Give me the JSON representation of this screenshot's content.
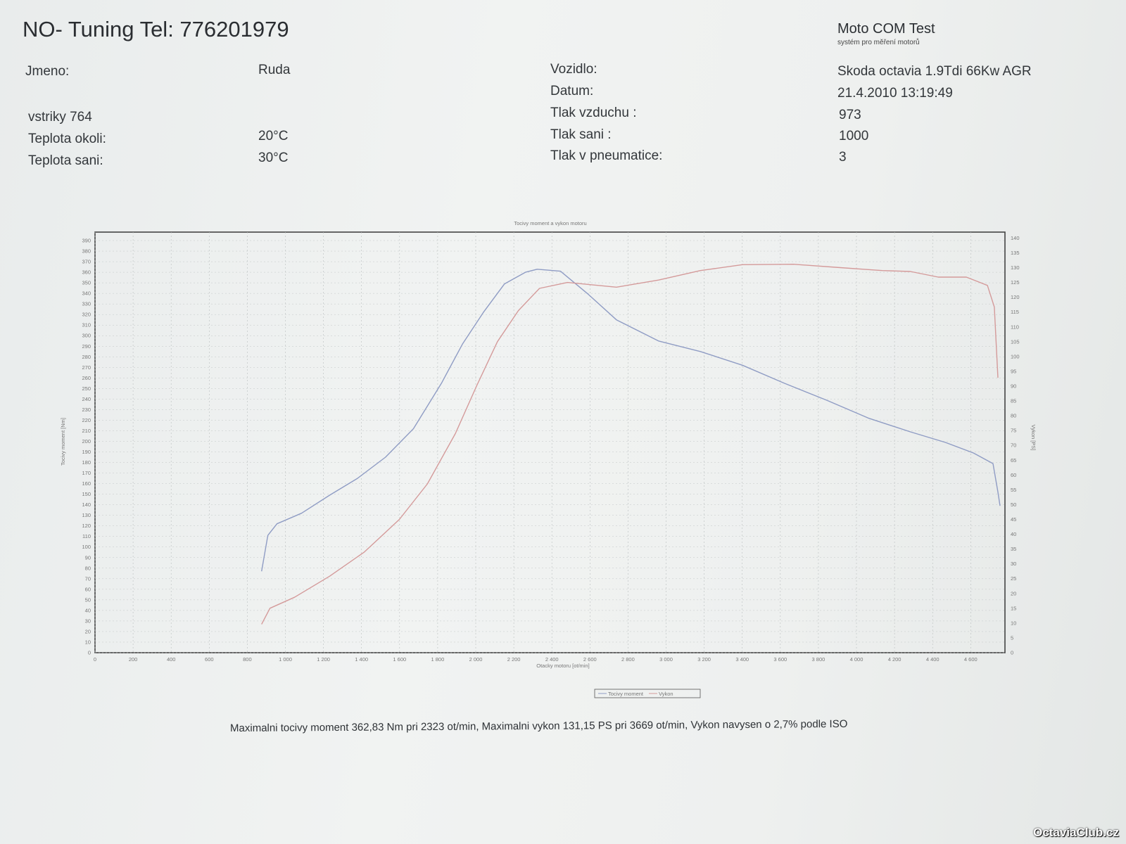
{
  "header": {
    "title": "NO- Tuning  Tel: 776201979",
    "brand": "Moto COM Test",
    "brand_sub": "systém pro měření motorů"
  },
  "info_left": [
    {
      "label": "Jmeno:",
      "value": "Ruda"
    },
    {
      "label": "vstriky 764",
      "value": ""
    },
    {
      "label": "Teplota okoli:",
      "value": "20°C"
    },
    {
      "label": "Teplota sani:",
      "value": "30°C"
    }
  ],
  "info_right": [
    {
      "label": "Vozidlo:",
      "value": "Skoda octavia 1.9Tdi 66Kw AGR"
    },
    {
      "label": "Datum:",
      "value": "21.4.2010 13:19:49"
    },
    {
      "label": "Tlak vzduchu :",
      "value": "973"
    },
    {
      "label": "Tlak sani :",
      "value": "1000"
    },
    {
      "label": "Tlak v pneumatice:",
      "value": "3"
    }
  ],
  "summary": "Maximalni tocivy moment 362,83 Nm pri 2323 ot/min,  Maximalni vykon 131,15 PS pri 3669 ot/min,  Vykon navysen o 2,7% podle ISO",
  "watermark": "OctaviaClub.cz",
  "chart_data": {
    "type": "line",
    "title": "Tocivy moment a vykon motoru",
    "xlabel": "Otacky motoru [ot/min]",
    "ylabel": "Tocivy moment [Nm]",
    "y2label": "Vykon [PS]",
    "xlim": [
      0,
      4780
    ],
    "ylim": [
      0,
      398
    ],
    "y2lim": [
      0,
      142
    ],
    "x_ticks": [
      0,
      200,
      400,
      600,
      800,
      1000,
      1200,
      1400,
      1600,
      1800,
      2000,
      2200,
      2400,
      2600,
      2800,
      3000,
      3200,
      3400,
      3600,
      3800,
      4000,
      4200,
      4400,
      4600
    ],
    "x_tick_labels": [
      "0",
      "200",
      "400",
      "600",
      "800",
      "1 000",
      "1 200",
      "1 400",
      "1 600",
      "1 800",
      "2 000",
      "2 200",
      "2 400",
      "2 600",
      "2 800",
      "3 000",
      "3 200",
      "3 400",
      "3 600",
      "3 800",
      "4 000",
      "4 200",
      "4 400",
      "4 600"
    ],
    "y_ticks_step": 10,
    "y_ticks_max": 390,
    "y2_ticks_step": 5,
    "y2_ticks_max": 140,
    "grid": true,
    "legend": "bottom",
    "series": [
      {
        "name": "Tocivy moment",
        "axis": "left",
        "color": "#8f9cc4",
        "x": [
          875,
          908,
          956,
          1085,
          1232,
          1379,
          1526,
          1673,
          1820,
          1930,
          2040,
          2151,
          2261,
          2323,
          2445,
          2592,
          2739,
          2960,
          3180,
          3401,
          3621,
          3842,
          4062,
          4283,
          4467,
          4614,
          4717,
          4743,
          4754
        ],
        "y": [
          77,
          111,
          122,
          132,
          149,
          165,
          185,
          212,
          255,
          292,
          322,
          349,
          360,
          362.83,
          361,
          339,
          315,
          295,
          285,
          272,
          255,
          239,
          222,
          209,
          199,
          189,
          179,
          152,
          139
        ]
      },
      {
        "name": "Vykon",
        "axis": "right",
        "color": "#d49a9a",
        "x": [
          875,
          919,
          1048,
          1232,
          1415,
          1599,
          1746,
          1893,
          2004,
          2114,
          2224,
          2335,
          2482,
          2739,
          2960,
          3180,
          3401,
          3669,
          3915,
          4136,
          4283,
          4430,
          4577,
          4688,
          4724,
          4743
        ],
        "y": [
          9.6,
          15,
          18.7,
          25.8,
          34,
          45,
          57,
          74,
          90,
          105,
          115.5,
          123,
          125,
          123.4,
          125.8,
          129,
          131,
          131.15,
          130,
          129,
          128.7,
          126.8,
          126.8,
          124,
          116.7,
          92.8
        ]
      }
    ]
  }
}
